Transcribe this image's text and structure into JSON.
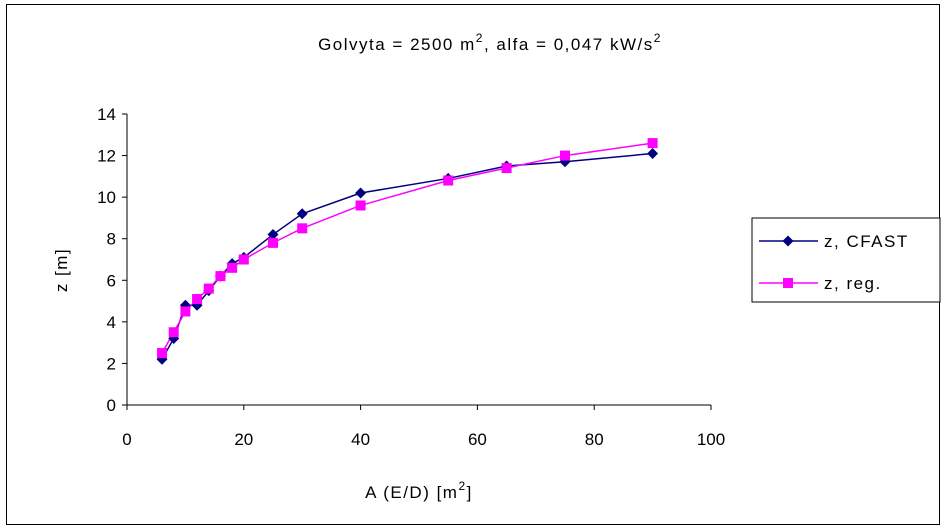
{
  "chart_data": {
    "type": "line",
    "title": {
      "text1": "Golvyta = 2500 m",
      "sup1": "2",
      "text2": ", alfa = 0,047 kW/s",
      "sup2": "2"
    },
    "xlabel": {
      "text": "A (E/D) [m",
      "sup": "2",
      "close": "]"
    },
    "ylabel": "z [m]",
    "xlim": [
      0,
      100
    ],
    "ylim": [
      0,
      14
    ],
    "x_ticks": [
      "0",
      "20",
      "40",
      "60",
      "80",
      "100"
    ],
    "y_ticks": [
      "0",
      "2",
      "4",
      "6",
      "8",
      "10",
      "12",
      "14"
    ],
    "legend_position": "right",
    "grid": false,
    "series": [
      {
        "name": "z, CFAST",
        "color": "#000080",
        "marker": "diamond",
        "points": [
          [
            6,
            2.2
          ],
          [
            8,
            3.2
          ],
          [
            10,
            4.8
          ],
          [
            12,
            4.8
          ],
          [
            14,
            5.5
          ],
          [
            16,
            6.2
          ],
          [
            18,
            6.8
          ],
          [
            20,
            7.1
          ],
          [
            25,
            8.2
          ],
          [
            30,
            9.2
          ],
          [
            40,
            10.2
          ],
          [
            55,
            10.9
          ],
          [
            65,
            11.5
          ],
          [
            75,
            11.7
          ],
          [
            90,
            12.1
          ]
        ]
      },
      {
        "name": "z, reg.",
        "color": "#FF00FF",
        "marker": "square",
        "points": [
          [
            6,
            2.5
          ],
          [
            8,
            3.5
          ],
          [
            10,
            4.5
          ],
          [
            12,
            5.1
          ],
          [
            14,
            5.6
          ],
          [
            16,
            6.2
          ],
          [
            18,
            6.6
          ],
          [
            20,
            7.0
          ],
          [
            25,
            7.8
          ],
          [
            30,
            8.5
          ],
          [
            40,
            9.6
          ],
          [
            55,
            10.8
          ],
          [
            65,
            11.4
          ],
          [
            75,
            12.0
          ],
          [
            90,
            12.6
          ]
        ]
      }
    ]
  }
}
